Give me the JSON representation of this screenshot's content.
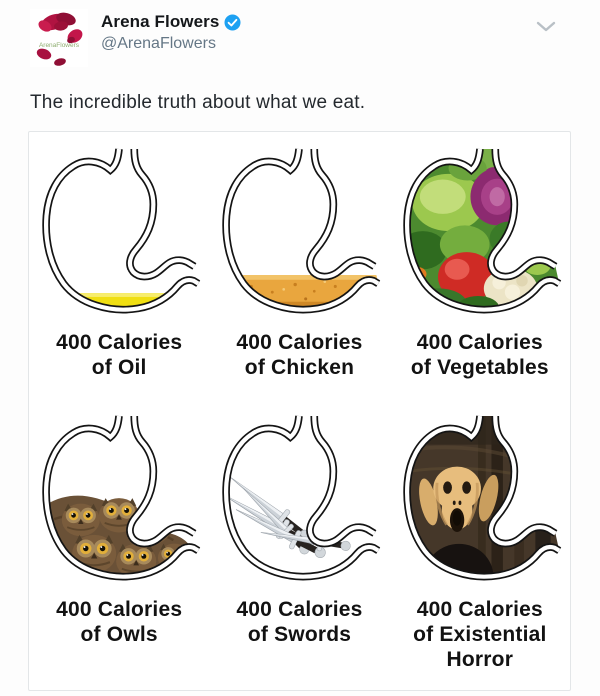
{
  "header": {
    "display_name": "Arena Flowers",
    "handle": "@ArenaFlowers",
    "avatar_label": "ArenaFlowers"
  },
  "icons": {
    "verified": "verified-badge",
    "chevron": "chevron-down"
  },
  "tweet": {
    "body": "The incredible truth about what we eat."
  },
  "infographic": {
    "panels": [
      {
        "id": "oil",
        "contents": "oil",
        "caption": [
          "400 Calories",
          "of Oil"
        ]
      },
      {
        "id": "chicken",
        "contents": "chicken",
        "caption": [
          "400 Calories",
          "of Chicken"
        ]
      },
      {
        "id": "vegetables",
        "contents": "vegetables",
        "caption": [
          "400 Calories",
          "of Vegetables"
        ]
      },
      {
        "id": "owls",
        "contents": "owls",
        "caption": [
          "400 Calories",
          "of Owls"
        ]
      },
      {
        "id": "swords",
        "contents": "swords",
        "caption": [
          "400 Calories",
          "of Swords"
        ]
      },
      {
        "id": "existential-horror",
        "contents": "existential-horror",
        "caption": [
          "400 Calories",
          "of Existential",
          "Horror"
        ]
      }
    ]
  },
  "colors": {
    "verified_blue": "#1da1f2",
    "name_black": "#14171a",
    "handle_gray": "#657786",
    "text_dark": "#24292e",
    "card_border": "#e3e6e8",
    "outline_black": "#141414",
    "oil_yellow": "#f0df12",
    "oil_highlight": "#f7ed6e",
    "chicken_orange": "#e9a63e",
    "chicken_dark": "#cf8826",
    "caption_black": "#121212",
    "petal_red": "#b01341"
  }
}
